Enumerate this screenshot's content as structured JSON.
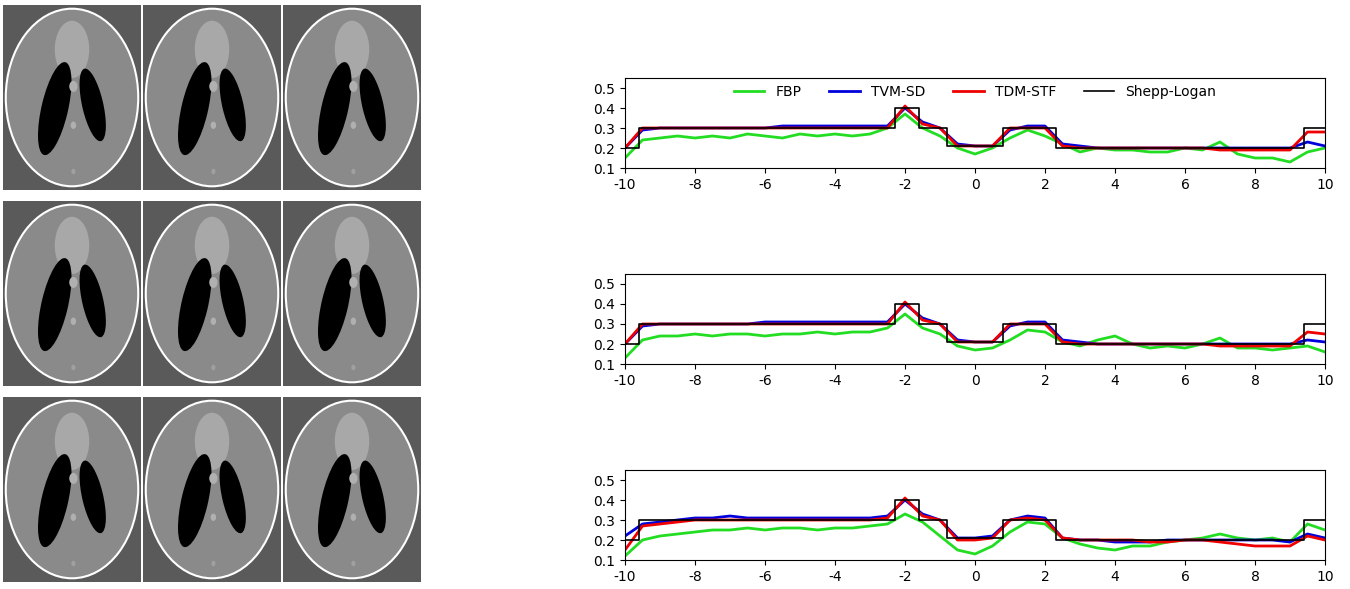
{
  "chart_data": [
    {
      "type": "line",
      "legend": "upper center",
      "xlim": [
        -10,
        10
      ],
      "xticks": [
        -10,
        -8,
        -6,
        -4,
        -2,
        0,
        2,
        4,
        6,
        8,
        10
      ],
      "ylim": [
        0.1,
        0.55
      ],
      "yticks": [
        0.1,
        0.2,
        0.3,
        0.4,
        0.5
      ],
      "series": [
        {
          "name": "FBP",
          "color": "#22dd22",
          "x": [
            -10,
            -9.5,
            -9,
            -8.5,
            -8,
            -7.5,
            -7,
            -6.5,
            -6,
            -5.5,
            -5,
            -4.5,
            -4,
            -3.5,
            -3,
            -2.5,
            -2,
            -1.5,
            -1,
            -0.5,
            0,
            0.5,
            1,
            1.5,
            2,
            2.5,
            3,
            3.5,
            4,
            4.5,
            5,
            5.5,
            6,
            6.5,
            7,
            7.5,
            8,
            8.5,
            9,
            9.5,
            10
          ],
          "values": [
            0.15,
            0.24,
            0.25,
            0.26,
            0.25,
            0.26,
            0.25,
            0.27,
            0.26,
            0.25,
            0.27,
            0.26,
            0.27,
            0.26,
            0.27,
            0.3,
            0.37,
            0.3,
            0.26,
            0.2,
            0.17,
            0.2,
            0.25,
            0.29,
            0.26,
            0.22,
            0.18,
            0.2,
            0.19,
            0.19,
            0.18,
            0.18,
            0.2,
            0.19,
            0.23,
            0.17,
            0.15,
            0.15,
            0.13,
            0.18,
            0.2
          ]
        },
        {
          "name": "TVM-SD",
          "color": "#0000dd",
          "x": [
            -10,
            -9.5,
            -9,
            -8.5,
            -8,
            -7.5,
            -7,
            -6.5,
            -6,
            -5.5,
            -5,
            -4.5,
            -4,
            -3.5,
            -3,
            -2.5,
            -2,
            -1.5,
            -1,
            -0.5,
            0,
            0.5,
            1,
            1.5,
            2,
            2.5,
            3,
            3.5,
            4,
            4.5,
            5,
            5.5,
            6,
            6.5,
            7,
            7.5,
            8,
            8.5,
            9,
            9.5,
            10
          ],
          "values": [
            0.2,
            0.29,
            0.3,
            0.3,
            0.3,
            0.3,
            0.3,
            0.3,
            0.3,
            0.31,
            0.31,
            0.31,
            0.31,
            0.31,
            0.31,
            0.31,
            0.4,
            0.33,
            0.3,
            0.22,
            0.21,
            0.21,
            0.29,
            0.31,
            0.31,
            0.22,
            0.21,
            0.2,
            0.2,
            0.2,
            0.2,
            0.2,
            0.2,
            0.2,
            0.2,
            0.2,
            0.2,
            0.2,
            0.2,
            0.23,
            0.21
          ]
        },
        {
          "name": "TDM-STF",
          "color": "#ee0000",
          "x": [
            -10,
            -9.5,
            -9,
            -8.5,
            -8,
            -7.5,
            -7,
            -6.5,
            -6,
            -5.5,
            -5,
            -4.5,
            -4,
            -3.5,
            -3,
            -2.5,
            -2,
            -1.5,
            -1,
            -0.5,
            0,
            0.5,
            1,
            1.5,
            2,
            2.5,
            3,
            3.5,
            4,
            4.5,
            5,
            5.5,
            6,
            6.5,
            7,
            7.5,
            8,
            8.5,
            9,
            9.5,
            10
          ],
          "values": [
            0.2,
            0.3,
            0.3,
            0.3,
            0.3,
            0.3,
            0.3,
            0.3,
            0.3,
            0.3,
            0.3,
            0.3,
            0.3,
            0.3,
            0.3,
            0.3,
            0.41,
            0.32,
            0.3,
            0.21,
            0.21,
            0.21,
            0.3,
            0.3,
            0.3,
            0.21,
            0.2,
            0.2,
            0.2,
            0.2,
            0.2,
            0.2,
            0.2,
            0.2,
            0.19,
            0.19,
            0.19,
            0.19,
            0.19,
            0.28,
            0.28
          ]
        },
        {
          "name": "Shepp-Logan",
          "color": "#000000",
          "x": [
            -10,
            -9.6,
            -9.6,
            -2.3,
            -2.3,
            -1.6,
            -1.6,
            -0.8,
            -0.8,
            0.8,
            0.8,
            2.3,
            2.3,
            9.4,
            9.4,
            10
          ],
          "values": [
            0.2,
            0.2,
            0.3,
            0.3,
            0.4,
            0.4,
            0.3,
            0.3,
            0.21,
            0.21,
            0.3,
            0.3,
            0.2,
            0.2,
            0.3,
            0.3
          ]
        }
      ]
    },
    {
      "type": "line",
      "xlim": [
        -10,
        10
      ],
      "xticks": [
        -10,
        -8,
        -6,
        -4,
        -2,
        0,
        2,
        4,
        6,
        8,
        10
      ],
      "ylim": [
        0.1,
        0.55
      ],
      "yticks": [
        0.1,
        0.2,
        0.3,
        0.4,
        0.5
      ],
      "series": [
        {
          "color": "#22dd22",
          "x": [
            -10,
            -9.5,
            -9,
            -8.5,
            -8,
            -7.5,
            -7,
            -6.5,
            -6,
            -5.5,
            -5,
            -4.5,
            -4,
            -3.5,
            -3,
            -2.5,
            -2,
            -1.5,
            -1,
            -0.5,
            0,
            0.5,
            1,
            1.5,
            2,
            2.5,
            3,
            3.5,
            4,
            4.5,
            5,
            5.5,
            6,
            6.5,
            7,
            7.5,
            8,
            8.5,
            9,
            9.5,
            10
          ],
          "values": [
            0.13,
            0.22,
            0.24,
            0.24,
            0.25,
            0.24,
            0.25,
            0.25,
            0.24,
            0.25,
            0.25,
            0.26,
            0.25,
            0.26,
            0.26,
            0.28,
            0.35,
            0.28,
            0.25,
            0.19,
            0.17,
            0.18,
            0.22,
            0.27,
            0.26,
            0.21,
            0.19,
            0.22,
            0.24,
            0.2,
            0.18,
            0.19,
            0.18,
            0.2,
            0.23,
            0.18,
            0.18,
            0.17,
            0.18,
            0.19,
            0.16
          ]
        },
        {
          "color": "#0000dd",
          "x": [
            -10,
            -9.5,
            -9,
            -8.5,
            -8,
            -7.5,
            -7,
            -6.5,
            -6,
            -5.5,
            -5,
            -4.5,
            -4,
            -3.5,
            -3,
            -2.5,
            -2,
            -1.5,
            -1,
            -0.5,
            0,
            0.5,
            1,
            1.5,
            2,
            2.5,
            3,
            3.5,
            4,
            4.5,
            5,
            5.5,
            6,
            6.5,
            7,
            7.5,
            8,
            8.5,
            9,
            9.5,
            10
          ],
          "values": [
            0.2,
            0.29,
            0.3,
            0.3,
            0.3,
            0.3,
            0.3,
            0.3,
            0.31,
            0.31,
            0.31,
            0.31,
            0.31,
            0.31,
            0.31,
            0.31,
            0.4,
            0.33,
            0.3,
            0.22,
            0.21,
            0.21,
            0.29,
            0.31,
            0.31,
            0.22,
            0.21,
            0.2,
            0.2,
            0.2,
            0.2,
            0.2,
            0.2,
            0.2,
            0.2,
            0.2,
            0.2,
            0.2,
            0.2,
            0.22,
            0.21
          ]
        },
        {
          "color": "#ee0000",
          "x": [
            -10,
            -9.5,
            -9,
            -8.5,
            -8,
            -7.5,
            -7,
            -6.5,
            -6,
            -5.5,
            -5,
            -4.5,
            -4,
            -3.5,
            -3,
            -2.5,
            -2,
            -1.5,
            -1,
            -0.5,
            0,
            0.5,
            1,
            1.5,
            2,
            2.5,
            3,
            3.5,
            4,
            4.5,
            5,
            5.5,
            6,
            6.5,
            7,
            7.5,
            8,
            8.5,
            9,
            9.5,
            10
          ],
          "values": [
            0.2,
            0.3,
            0.3,
            0.3,
            0.3,
            0.3,
            0.3,
            0.3,
            0.3,
            0.3,
            0.3,
            0.3,
            0.3,
            0.3,
            0.3,
            0.3,
            0.41,
            0.32,
            0.3,
            0.21,
            0.21,
            0.21,
            0.3,
            0.3,
            0.3,
            0.21,
            0.2,
            0.2,
            0.2,
            0.2,
            0.2,
            0.2,
            0.2,
            0.2,
            0.19,
            0.19,
            0.19,
            0.19,
            0.19,
            0.26,
            0.25
          ]
        },
        {
          "color": "#000000",
          "x": [
            -10,
            -9.6,
            -9.6,
            -2.3,
            -2.3,
            -1.6,
            -1.6,
            -0.8,
            -0.8,
            0.8,
            0.8,
            2.3,
            2.3,
            9.4,
            9.4,
            10
          ],
          "values": [
            0.2,
            0.2,
            0.3,
            0.3,
            0.4,
            0.4,
            0.3,
            0.3,
            0.21,
            0.21,
            0.3,
            0.3,
            0.2,
            0.2,
            0.3,
            0.3
          ]
        }
      ]
    },
    {
      "type": "line",
      "xlim": [
        -10,
        10
      ],
      "xticks": [
        -10,
        -8,
        -6,
        -4,
        -2,
        0,
        2,
        4,
        6,
        8,
        10
      ],
      "ylim": [
        0.1,
        0.55
      ],
      "yticks": [
        0.1,
        0.2,
        0.3,
        0.4,
        0.5
      ],
      "series": [
        {
          "color": "#22dd22",
          "x": [
            -10,
            -9.5,
            -9,
            -8.5,
            -8,
            -7.5,
            -7,
            -6.5,
            -6,
            -5.5,
            -5,
            -4.5,
            -4,
            -3.5,
            -3,
            -2.5,
            -2,
            -1.5,
            -1,
            -0.5,
            0,
            0.5,
            1,
            1.5,
            2,
            2.5,
            3,
            3.5,
            4,
            4.5,
            5,
            5.5,
            6,
            6.5,
            7,
            7.5,
            8,
            8.5,
            9,
            9.5,
            10
          ],
          "values": [
            0.12,
            0.2,
            0.22,
            0.23,
            0.24,
            0.25,
            0.25,
            0.26,
            0.25,
            0.26,
            0.26,
            0.25,
            0.26,
            0.26,
            0.27,
            0.28,
            0.33,
            0.29,
            0.22,
            0.15,
            0.13,
            0.17,
            0.24,
            0.29,
            0.28,
            0.21,
            0.18,
            0.16,
            0.15,
            0.17,
            0.17,
            0.19,
            0.2,
            0.21,
            0.23,
            0.21,
            0.2,
            0.21,
            0.19,
            0.28,
            0.25
          ]
        },
        {
          "color": "#0000dd",
          "x": [
            -10,
            -9.5,
            -9,
            -8.5,
            -8,
            -7.5,
            -7,
            -6.5,
            -6,
            -5.5,
            -5,
            -4.5,
            -4,
            -3.5,
            -3,
            -2.5,
            -2,
            -1.5,
            -1,
            -0.5,
            0,
            0.5,
            1,
            1.5,
            2,
            2.5,
            3,
            3.5,
            4,
            4.5,
            5,
            5.5,
            6,
            6.5,
            7,
            7.5,
            8,
            8.5,
            9,
            9.5,
            10
          ],
          "values": [
            0.22,
            0.28,
            0.29,
            0.3,
            0.31,
            0.31,
            0.32,
            0.31,
            0.31,
            0.31,
            0.31,
            0.31,
            0.31,
            0.31,
            0.31,
            0.32,
            0.4,
            0.33,
            0.3,
            0.21,
            0.21,
            0.22,
            0.3,
            0.32,
            0.31,
            0.21,
            0.2,
            0.2,
            0.19,
            0.19,
            0.19,
            0.2,
            0.2,
            0.2,
            0.2,
            0.2,
            0.2,
            0.2,
            0.19,
            0.23,
            0.21
          ]
        },
        {
          "color": "#ee0000",
          "x": [
            -10,
            -9.5,
            -9,
            -8.5,
            -8,
            -7.5,
            -7,
            -6.5,
            -6,
            -5.5,
            -5,
            -4.5,
            -4,
            -3.5,
            -3,
            -2.5,
            -2,
            -1.5,
            -1,
            -0.5,
            0,
            0.5,
            1,
            1.5,
            2,
            2.5,
            3,
            3.5,
            4,
            4.5,
            5,
            5.5,
            6,
            6.5,
            7,
            7.5,
            8,
            8.5,
            9,
            9.5,
            10
          ],
          "values": [
            0.15,
            0.27,
            0.28,
            0.29,
            0.3,
            0.3,
            0.3,
            0.3,
            0.3,
            0.3,
            0.3,
            0.3,
            0.3,
            0.3,
            0.3,
            0.31,
            0.41,
            0.32,
            0.3,
            0.2,
            0.2,
            0.21,
            0.3,
            0.31,
            0.3,
            0.21,
            0.2,
            0.2,
            0.2,
            0.2,
            0.19,
            0.19,
            0.2,
            0.2,
            0.19,
            0.18,
            0.17,
            0.17,
            0.17,
            0.22,
            0.2
          ]
        },
        {
          "color": "#000000",
          "x": [
            -10,
            -9.6,
            -9.6,
            -2.3,
            -2.3,
            -1.6,
            -1.6,
            -0.8,
            -0.8,
            0.8,
            0.8,
            2.3,
            2.3,
            9.4,
            9.4,
            10
          ],
          "values": [
            0.2,
            0.2,
            0.3,
            0.3,
            0.4,
            0.4,
            0.3,
            0.3,
            0.21,
            0.21,
            0.3,
            0.3,
            0.2,
            0.2,
            0.3,
            0.3
          ]
        }
      ]
    }
  ]
}
